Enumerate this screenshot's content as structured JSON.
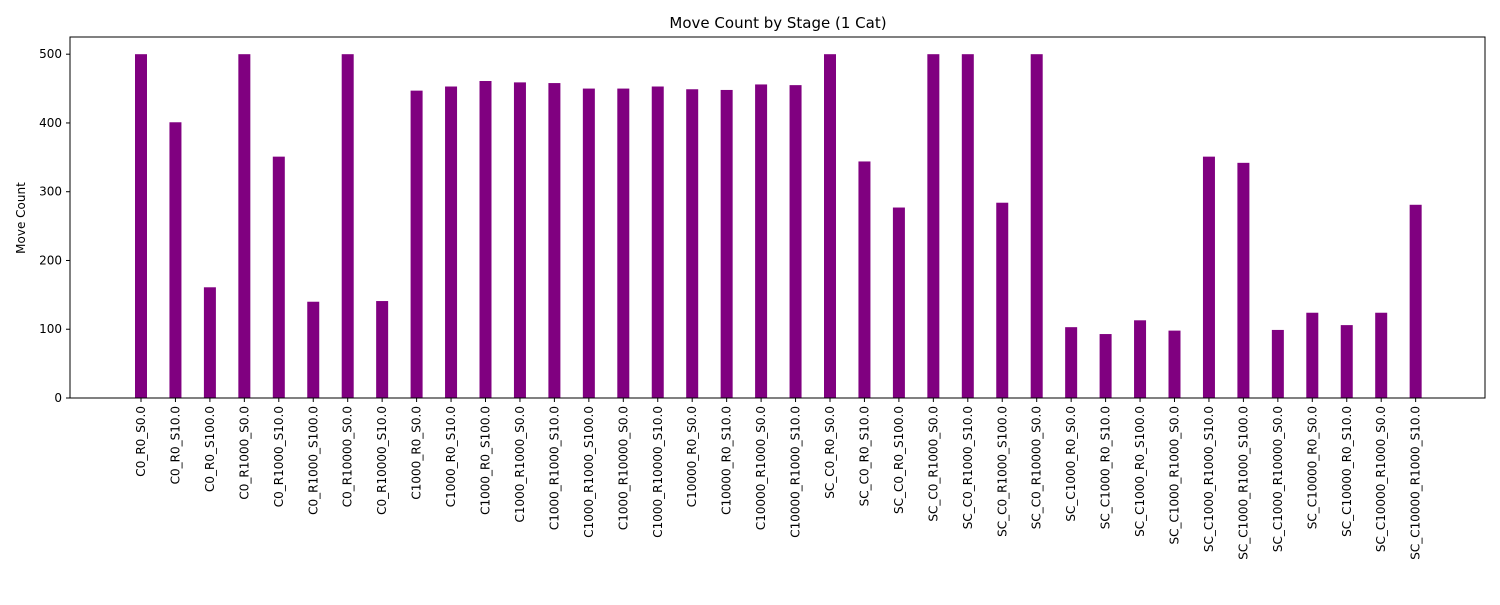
{
  "chart_data": {
    "type": "bar",
    "title": "Move Count by Stage (1 Cat)",
    "xlabel": "",
    "ylabel": "Move Count",
    "ylim": [
      0,
      525
    ],
    "yticks": [
      0,
      100,
      200,
      300,
      400,
      500
    ],
    "grid": false,
    "bar_color": "#800080",
    "categories": [
      "C0_R0_S0.0",
      "C0_R0_S10.0",
      "C0_R0_S100.0",
      "C0_R1000_S0.0",
      "C0_R1000_S10.0",
      "C0_R1000_S100.0",
      "C0_R10000_S0.0",
      "C0_R10000_S10.0",
      "C1000_R0_S0.0",
      "C1000_R0_S10.0",
      "C1000_R0_S100.0",
      "C1000_R1000_S0.0",
      "C1000_R1000_S10.0",
      "C1000_R1000_S100.0",
      "C1000_R10000_S0.0",
      "C1000_R10000_S10.0",
      "C10000_R0_S0.0",
      "C10000_R0_S10.0",
      "C10000_R1000_S0.0",
      "C10000_R1000_S10.0",
      "SC_C0_R0_S0.0",
      "SC_C0_R0_S10.0",
      "SC_C0_R0_S100.0",
      "SC_C0_R1000_S0.0",
      "SC_C0_R1000_S10.0",
      "SC_C0_R1000_S100.0",
      "SC_C0_R10000_S0.0",
      "SC_C1000_R0_S0.0",
      "SC_C1000_R0_S10.0",
      "SC_C1000_R0_S100.0",
      "SC_C1000_R1000_S0.0",
      "SC_C1000_R1000_S10.0",
      "SC_C1000_R1000_S100.0",
      "SC_C1000_R10000_S0.0",
      "SC_C10000_R0_S0.0",
      "SC_C10000_R0_S10.0",
      "SC_C10000_R1000_S0.0",
      "SC_C10000_R1000_S10.0"
    ],
    "values": [
      500,
      401,
      161,
      500,
      351,
      140,
      500,
      141,
      447,
      453,
      461,
      459,
      458,
      450,
      450,
      453,
      449,
      448,
      456,
      455,
      500,
      344,
      277,
      500,
      500,
      284,
      500,
      103,
      93,
      113,
      98,
      351,
      342,
      99,
      124,
      106,
      124,
      281
    ]
  }
}
